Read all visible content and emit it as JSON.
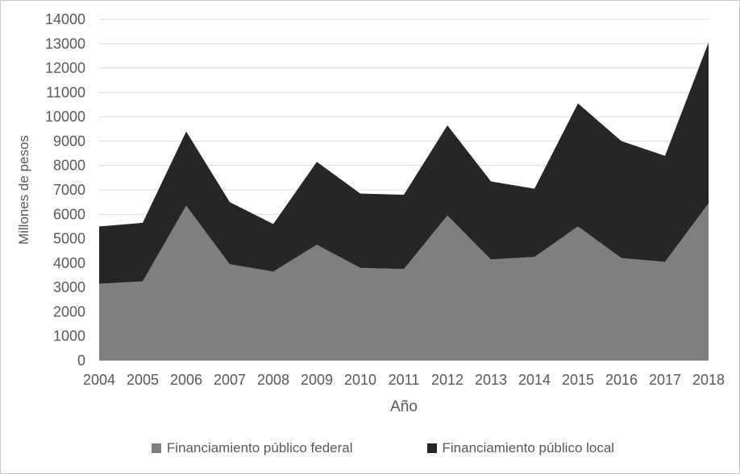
{
  "chart_data": {
    "type": "area",
    "stacked": true,
    "title": "",
    "xlabel": "Año",
    "ylabel": "Millones de pesos",
    "x": [
      2004,
      2005,
      2006,
      2007,
      2008,
      2009,
      2010,
      2011,
      2012,
      2013,
      2014,
      2015,
      2016,
      2017,
      2018
    ],
    "series": [
      {
        "name": "Financiamiento público federal",
        "color": "#7F7F7F",
        "values": [
          3150,
          3250,
          6350,
          3950,
          3650,
          4750,
          3800,
          3750,
          5950,
          4150,
          4250,
          5500,
          4200,
          4050,
          6450
        ]
      },
      {
        "name": "Financiamiento público local",
        "color": "#262626",
        "values": [
          2350,
          2400,
          3050,
          2550,
          1950,
          3400,
          3050,
          3050,
          3700,
          3200,
          2800,
          5050,
          4800,
          4350,
          6600
        ]
      }
    ],
    "stacked_totals": [
      5500,
      5650,
      9400,
      6500,
      5600,
      8150,
      6850,
      6800,
      9650,
      7350,
      7050,
      10550,
      9000,
      8400,
      13050
    ],
    "ylim": [
      0,
      14000
    ],
    "y_tick_step": 1000,
    "y_ticks": [
      0,
      1000,
      2000,
      3000,
      4000,
      5000,
      6000,
      7000,
      8000,
      9000,
      10000,
      11000,
      12000,
      13000,
      14000
    ],
    "gridlines": "horizontal",
    "legend_position": "bottom",
    "colors": {
      "gridline": "#D9D9D9",
      "text": "#595959",
      "frame_border": "#C9C9C9",
      "background": "#FFFFFF"
    }
  }
}
